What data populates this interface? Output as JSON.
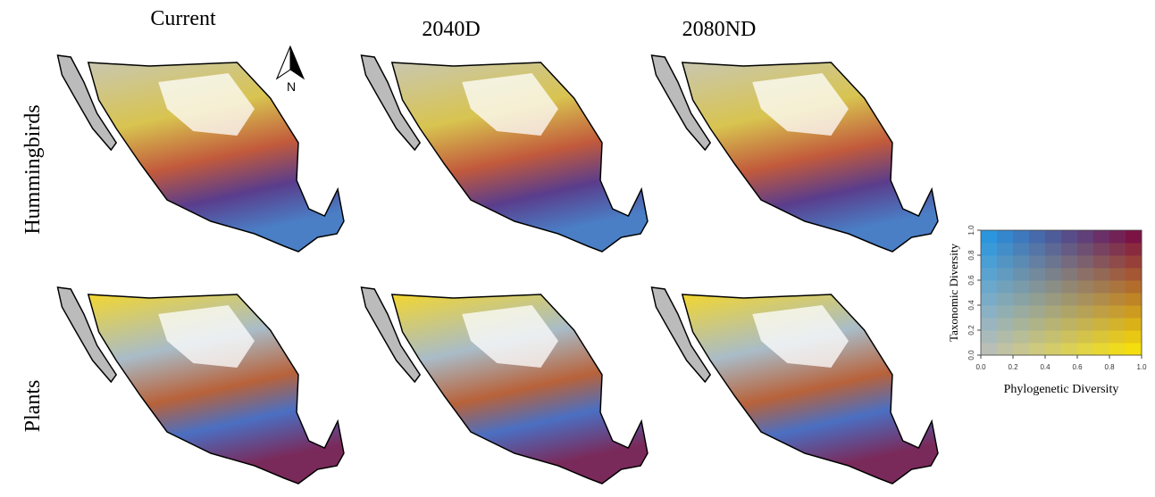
{
  "columns": [
    "Current",
    "2040D",
    "2080ND"
  ],
  "rows": [
    "Hummingbirds",
    "Plants"
  ],
  "north_arrow": "N",
  "legend": {
    "x_label": "Phylogenetic Diversity",
    "y_label": "Taxonomic Diversity",
    "x_ticks": [
      "0.0",
      "0.2",
      "0.4",
      "0.6",
      "0.8",
      "1.0"
    ],
    "y_ticks": [
      "0.0",
      "0.2",
      "0.4",
      "0.6",
      "0.8",
      "1.0"
    ]
  }
}
